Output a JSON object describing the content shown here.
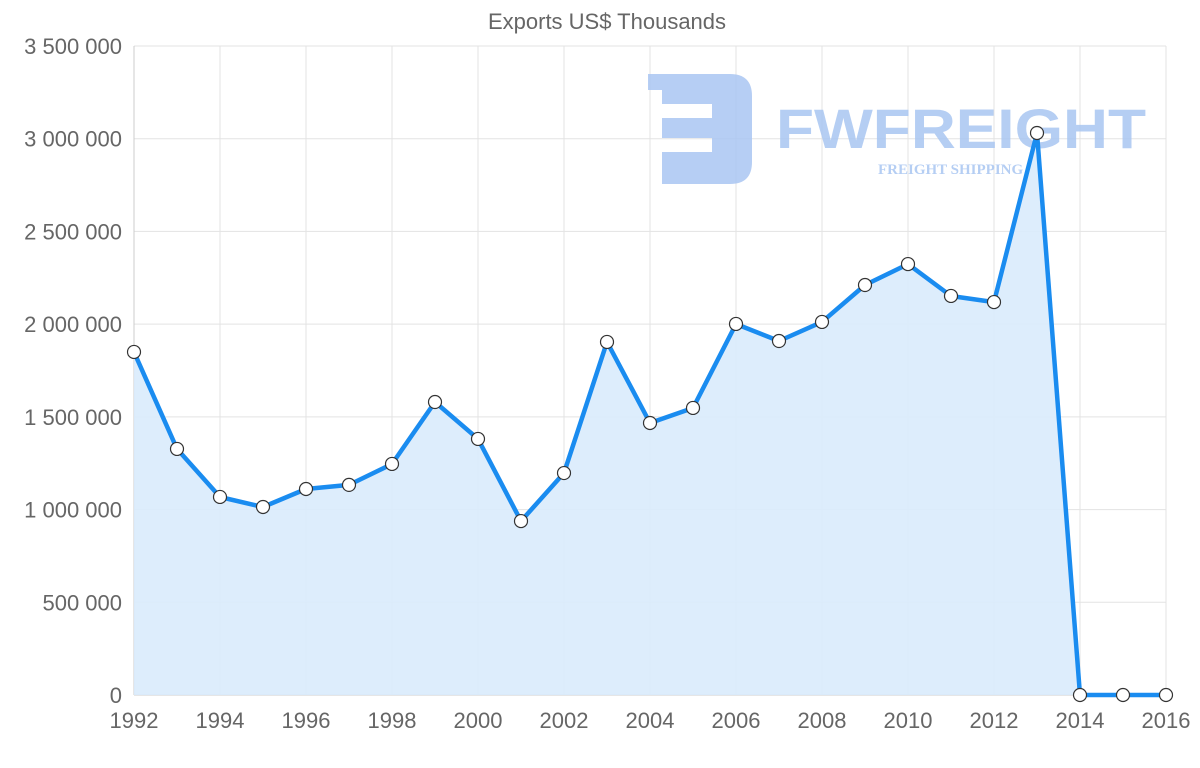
{
  "chart_data": {
    "type": "area",
    "title": "Exports US$ Thousands",
    "xlabel": "",
    "ylabel": "",
    "x": [
      1992,
      1993,
      1994,
      1995,
      1996,
      1997,
      1998,
      1999,
      2000,
      2001,
      2002,
      2003,
      2004,
      2005,
      2006,
      2007,
      2008,
      2009,
      2010,
      2011,
      2012,
      2013,
      2014,
      2015,
      2016
    ],
    "series": [
      {
        "name": "Exports US$ Thousands",
        "values": [
          1850000,
          1327000,
          1068000,
          1014000,
          1111000,
          1133000,
          1246000,
          1580000,
          1381000,
          938000,
          1197000,
          1904000,
          1467000,
          1548000,
          2001000,
          1909000,
          2012000,
          2211000,
          2324000,
          2152000,
          2119000,
          3031000,
          0,
          0,
          0
        ]
      }
    ],
    "xlim": [
      1992,
      2016
    ],
    "ylim": [
      0,
      3500000
    ],
    "x_ticks": [
      "1992",
      "1994",
      "1996",
      "1998",
      "2000",
      "2002",
      "2004",
      "2006",
      "2008",
      "2010",
      "2012",
      "2014",
      "2016"
    ],
    "y_ticks": [
      "0",
      "500 000",
      "1 000 000",
      "1 500 000",
      "2 000 000",
      "2 500 000",
      "3 000 000",
      "3 500 000"
    ],
    "grid": true,
    "line_color": "#1a8cf0",
    "fill_color": "#d9ebfc"
  },
  "watermark": {
    "brand": "FWFREIGHT",
    "tagline": "FREIGHT SHIPPING",
    "color": "#a9c6f2"
  }
}
